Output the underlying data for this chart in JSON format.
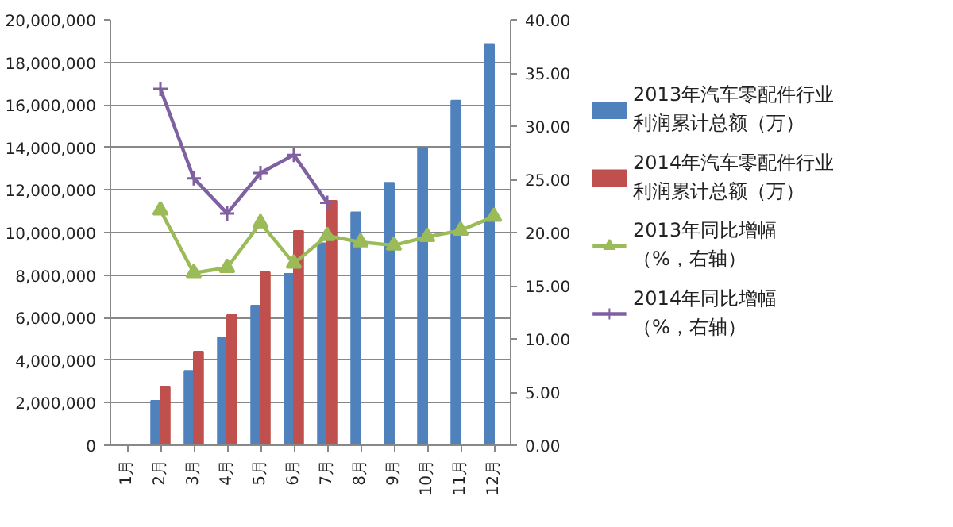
{
  "chart_data": {
    "type": "bar",
    "categories": [
      "1月",
      "2月",
      "3月",
      "4月",
      "5月",
      "6月",
      "7月",
      "8月",
      "9月",
      "10月",
      "11月",
      "12月"
    ],
    "series": [
      {
        "name": "2013年汽车零配件行业利润累计总额（万）",
        "color": "#4f81bd",
        "values": [
          null,
          2090000,
          3500000,
          5070000,
          6570000,
          8060000,
          9500000,
          10950000,
          12340000,
          13980000,
          16200000,
          18860000
        ]
      },
      {
        "name": "2014年汽车零配件行业利润累计总额（万）",
        "color": "#c0504d",
        "values": [
          null,
          2760000,
          4400000,
          6120000,
          8130000,
          10070000,
          11490000,
          null,
          null,
          null,
          null,
          null
        ]
      },
      {
        "name": "2013年同比增幅（%，右轴）",
        "type": "line",
        "axis": "y2",
        "marker": "triangle",
        "color": "#9bbb59",
        "values": [
          null,
          22.1,
          16.2,
          16.7,
          20.9,
          17.1,
          19.7,
          19.1,
          18.8,
          19.6,
          20.2,
          21.5
        ]
      },
      {
        "name": "2014年同比增幅（%，右轴）",
        "type": "line",
        "axis": "y2",
        "marker": "cross",
        "color": "#7f60a0",
        "values": [
          null,
          33.5,
          25.1,
          21.8,
          25.6,
          27.3,
          22.8,
          null,
          null,
          null,
          null,
          null
        ]
      }
    ],
    "ylim": [
      0,
      20000000
    ],
    "yticks": [
      0,
      {
        "value": 2000000,
        "label": "2,000,000"
      },
      {
        "value": 4000000,
        "label": "4,000,000"
      },
      {
        "value": 6000000,
        "label": "6,000,000"
      },
      {
        "value": 8000000,
        "label": "8,000,000"
      },
      {
        "value": 10000000,
        "label": "10,000,000"
      },
      {
        "value": 12000000,
        "label": "12,000,000"
      },
      {
        "value": 14000000,
        "label": "14,000,000"
      },
      {
        "value": 16000000,
        "label": "16,000,000"
      },
      {
        "value": 18000000,
        "label": "18,000,000"
      },
      {
        "value": 20000000,
        "label": "20,000,000"
      }
    ],
    "y2lim": [
      0,
      40
    ],
    "y2ticks": [
      {
        "value": 0,
        "label": "0.00"
      },
      {
        "value": 5,
        "label": "5.00"
      },
      {
        "value": 10,
        "label": "10.00"
      },
      {
        "value": 15,
        "label": "15.00"
      },
      {
        "value": 20,
        "label": "20.00"
      },
      {
        "value": 25,
        "label": "25.00"
      },
      {
        "value": 30,
        "label": "30.00"
      },
      {
        "value": 35,
        "label": "35.00"
      },
      {
        "value": 40,
        "label": "40.00"
      }
    ],
    "grid": "y",
    "legend": "right",
    "line_style": "solid"
  }
}
